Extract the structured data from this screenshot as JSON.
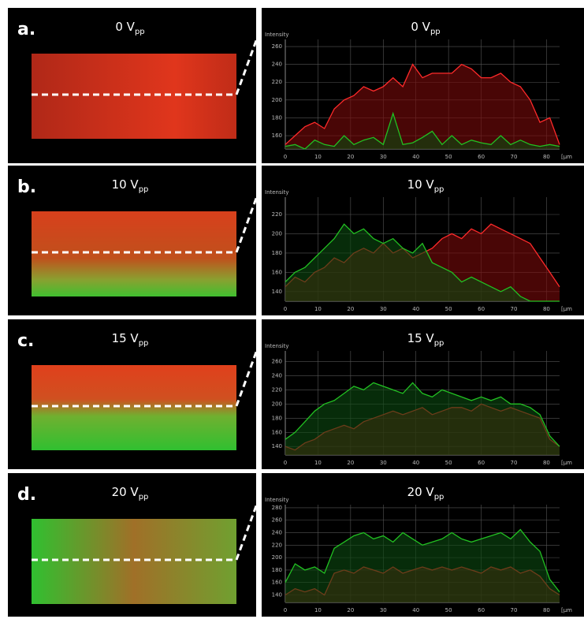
{
  "chart_data": [
    {
      "type": "line",
      "panel": "a.",
      "title": "0 V",
      "title_sub": "pp",
      "y_label": "Intensity",
      "x_label": "[µm",
      "x": [
        0,
        3,
        6,
        9,
        12,
        15,
        18,
        21,
        24,
        27,
        30,
        33,
        36,
        39,
        42,
        45,
        48,
        51,
        54,
        57,
        60,
        63,
        66,
        69,
        72,
        75,
        78,
        81,
        84
      ],
      "xlim": [
        0,
        84
      ],
      "xticks": [
        0,
        10,
        20,
        30,
        40,
        50,
        60,
        70,
        80
      ],
      "ylim": [
        145,
        268
      ],
      "yticks": [
        160,
        180,
        200,
        220,
        240,
        260
      ],
      "grid": true,
      "series": [
        {
          "color": "#ff2a2a",
          "fill": "#7a0a0a",
          "values": [
            150,
            160,
            170,
            175,
            168,
            190,
            200,
            205,
            215,
            210,
            215,
            225,
            215,
            240,
            225,
            230,
            230,
            230,
            240,
            235,
            225,
            225,
            230,
            220,
            215,
            200,
            175,
            180,
            150
          ]
        },
        {
          "color": "#22c022",
          "fill": "#0c4a10",
          "values": [
            148,
            150,
            145,
            155,
            150,
            148,
            160,
            150,
            155,
            158,
            150,
            185,
            150,
            152,
            158,
            165,
            150,
            160,
            150,
            155,
            152,
            150,
            160,
            150,
            155,
            150,
            148,
            150,
            148
          ]
        }
      ]
    },
    {
      "type": "line",
      "panel": "b.",
      "title": "10 V",
      "title_sub": "pp",
      "y_label": "Intensity",
      "x_label": "[µm",
      "x": [
        0,
        3,
        6,
        9,
        12,
        15,
        18,
        21,
        24,
        27,
        30,
        33,
        36,
        39,
        42,
        45,
        48,
        51,
        54,
        57,
        60,
        63,
        66,
        69,
        72,
        75,
        78,
        81,
        84
      ],
      "xlim": [
        0,
        84
      ],
      "xticks": [
        0,
        10,
        20,
        30,
        40,
        50,
        60,
        70,
        80
      ],
      "ylim": [
        130,
        238
      ],
      "yticks": [
        140,
        160,
        180,
        200,
        220
      ],
      "grid": true,
      "series": [
        {
          "color": "#ff2a2a",
          "fill": "#7a0a0a",
          "values": [
            145,
            155,
            150,
            160,
            165,
            175,
            170,
            180,
            185,
            180,
            190,
            180,
            185,
            175,
            180,
            185,
            195,
            200,
            195,
            205,
            200,
            210,
            205,
            200,
            195,
            190,
            175,
            160,
            145
          ]
        },
        {
          "color": "#22c022",
          "fill": "#0c4a10",
          "values": [
            150,
            160,
            165,
            175,
            185,
            195,
            210,
            200,
            205,
            195,
            190,
            195,
            185,
            180,
            190,
            170,
            165,
            160,
            150,
            155,
            150,
            145,
            140,
            145,
            135,
            130,
            130,
            130,
            130
          ]
        }
      ]
    },
    {
      "type": "line",
      "panel": "c.",
      "title": "15 V",
      "title_sub": "pp",
      "y_label": "Intensity",
      "x_label": "[µm",
      "x": [
        0,
        3,
        6,
        9,
        12,
        15,
        18,
        21,
        24,
        27,
        30,
        33,
        36,
        39,
        42,
        45,
        48,
        51,
        54,
        57,
        60,
        63,
        66,
        69,
        72,
        75,
        78,
        81,
        84
      ],
      "xlim": [
        0,
        84
      ],
      "xticks": [
        0,
        10,
        20,
        30,
        40,
        50,
        60,
        70,
        80
      ],
      "ylim": [
        128,
        275
      ],
      "yticks": [
        140,
        160,
        180,
        200,
        220,
        240,
        260
      ],
      "grid": true,
      "series": [
        {
          "color": "#ff2a2a",
          "fill": "#7a0a0a",
          "values": [
            140,
            135,
            145,
            150,
            160,
            165,
            170,
            165,
            175,
            180,
            185,
            190,
            185,
            190,
            195,
            185,
            190,
            195,
            195,
            190,
            200,
            195,
            190,
            195,
            190,
            185,
            180,
            150,
            140
          ]
        },
        {
          "color": "#22c022",
          "fill": "#0c4a10",
          "values": [
            150,
            160,
            175,
            190,
            200,
            205,
            215,
            225,
            220,
            230,
            225,
            220,
            215,
            230,
            215,
            210,
            220,
            215,
            210,
            205,
            210,
            205,
            210,
            200,
            200,
            195,
            185,
            155,
            140
          ]
        }
      ]
    },
    {
      "type": "line",
      "panel": "d.",
      "title": "20 V",
      "title_sub": "pp",
      "y_label": "Intensity",
      "x_label": "[µm",
      "x": [
        0,
        3,
        6,
        9,
        12,
        15,
        18,
        21,
        24,
        27,
        30,
        33,
        36,
        39,
        42,
        45,
        48,
        51,
        54,
        57,
        60,
        63,
        66,
        69,
        72,
        75,
        78,
        81,
        84
      ],
      "xlim": [
        0,
        84
      ],
      "xticks": [
        0,
        10,
        20,
        30,
        40,
        50,
        60,
        70,
        80
      ],
      "ylim": [
        128,
        285
      ],
      "yticks": [
        140,
        160,
        180,
        200,
        220,
        240,
        260,
        280
      ],
      "grid": true,
      "series": [
        {
          "color": "#ff2a2a",
          "fill": "#7a0a0a",
          "values": [
            140,
            150,
            145,
            150,
            140,
            175,
            180,
            175,
            185,
            180,
            175,
            185,
            175,
            180,
            185,
            180,
            185,
            180,
            185,
            180,
            175,
            185,
            180,
            185,
            175,
            180,
            170,
            150,
            140
          ]
        },
        {
          "color": "#22c022",
          "fill": "#0c4a10",
          "values": [
            160,
            190,
            180,
            185,
            175,
            215,
            225,
            235,
            240,
            230,
            235,
            225,
            240,
            230,
            220,
            225,
            230,
            240,
            230,
            225,
            230,
            235,
            240,
            230,
            245,
            225,
            210,
            165,
            145
          ]
        }
      ]
    }
  ]
}
